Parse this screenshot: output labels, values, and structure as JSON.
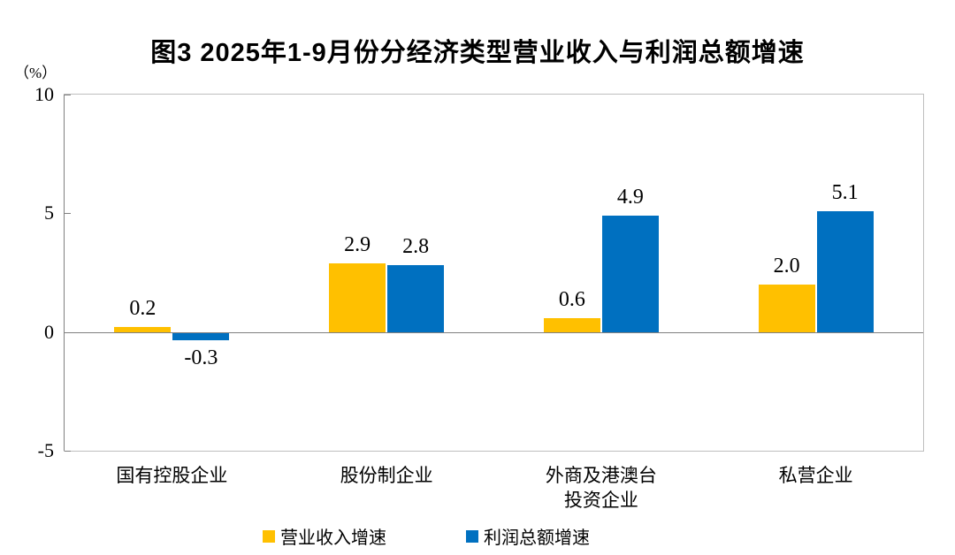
{
  "header": {
    "title": "图3  2025年1-9月份分经济类型营业收入与利润总额增速"
  },
  "chart_data": {
    "type": "bar",
    "title": "图3  2025年1-9月份分经济类型营业收入与利润总额增速",
    "unit_label": "（%）",
    "categories": [
      "国有控股企业",
      "股份制企业",
      "外商及港澳台\n投资企业",
      "私营企业"
    ],
    "series": [
      {
        "name": "营业收入增速",
        "color": "#FFC000",
        "values": [
          0.2,
          2.9,
          0.6,
          2.0
        ]
      },
      {
        "name": "利润总额增速",
        "color": "#0070C0",
        "values": [
          -0.3,
          2.8,
          4.9,
          5.1
        ]
      }
    ],
    "ylim": [
      -5,
      10
    ],
    "y_ticks": [
      10,
      5,
      0,
      -5
    ],
    "grid": false,
    "value_labels": true,
    "legend_position": "bottom",
    "colors": {
      "axis": "#808080",
      "plot_border": "#bfbfbf",
      "text": "#000000"
    }
  }
}
